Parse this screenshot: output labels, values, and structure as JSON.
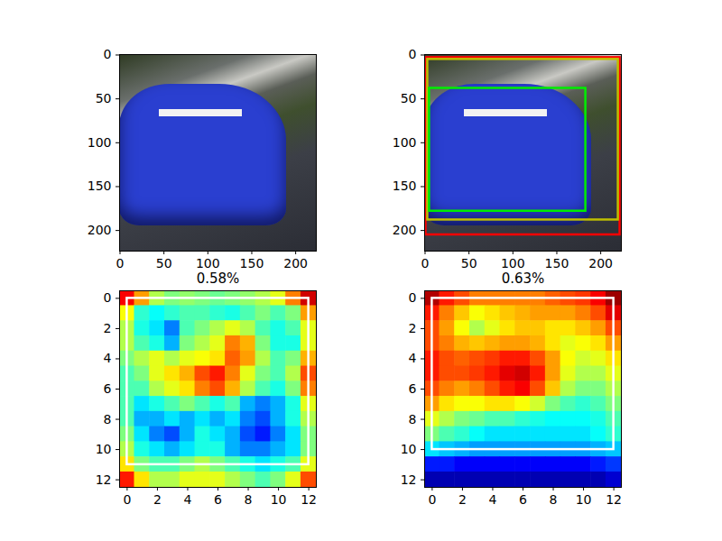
{
  "chart_data": [
    {
      "type": "image",
      "xlim": [
        -0.5,
        223.5
      ],
      "ylim": [
        223.5,
        -0.5
      ],
      "xticks": [
        0,
        50,
        100,
        150,
        200
      ],
      "yticks": [
        0,
        50,
        100,
        150,
        200
      ]
    },
    {
      "type": "image",
      "xlim": [
        -0.5,
        223.5
      ],
      "ylim": [
        223.5,
        -0.5
      ],
      "xticks": [
        0,
        50,
        100,
        150,
        200
      ],
      "yticks": [
        0,
        50,
        100,
        150,
        200
      ],
      "boxes": [
        {
          "x": [
            1,
            222
          ],
          "y": [
            3,
            205
          ],
          "color": "#ff0000"
        },
        {
          "x": [
            3,
            220
          ],
          "y": [
            5,
            188
          ],
          "color": "#bfbf00"
        },
        {
          "x": [
            5,
            183
          ],
          "y": [
            38,
            178
          ],
          "color": "#00ee00"
        }
      ]
    },
    {
      "type": "heatmap",
      "title": "0.58%",
      "xlim": [
        -0.5,
        12.5
      ],
      "ylim": [
        12.5,
        -0.5
      ],
      "xticks": [
        0,
        2,
        4,
        6,
        8,
        10,
        12
      ],
      "yticks": [
        0,
        2,
        4,
        6,
        8,
        10,
        12
      ],
      "zlim": [
        0,
        1
      ],
      "cells": [
        [
          0.88,
          0.72,
          0.55,
          0.5,
          0.52,
          0.5,
          0.48,
          0.5,
          0.52,
          0.55,
          0.6,
          0.75,
          0.92
        ],
        [
          0.62,
          0.42,
          0.38,
          0.42,
          0.45,
          0.45,
          0.42,
          0.4,
          0.45,
          0.5,
          0.45,
          0.5,
          0.72
        ],
        [
          0.55,
          0.4,
          0.35,
          0.25,
          0.45,
          0.5,
          0.55,
          0.6,
          0.55,
          0.45,
          0.4,
          0.45,
          0.6
        ],
        [
          0.55,
          0.45,
          0.4,
          0.3,
          0.5,
          0.55,
          0.6,
          0.75,
          0.7,
          0.5,
          0.4,
          0.4,
          0.6
        ],
        [
          0.5,
          0.55,
          0.6,
          0.55,
          0.6,
          0.62,
          0.65,
          0.78,
          0.72,
          0.55,
          0.45,
          0.5,
          0.7
        ],
        [
          0.45,
          0.5,
          0.6,
          0.65,
          0.7,
          0.8,
          0.85,
          0.75,
          0.6,
          0.5,
          0.45,
          0.55,
          0.8
        ],
        [
          0.45,
          0.45,
          0.55,
          0.6,
          0.65,
          0.75,
          0.8,
          0.7,
          0.55,
          0.45,
          0.4,
          0.5,
          0.75
        ],
        [
          0.45,
          0.35,
          0.4,
          0.45,
          0.5,
          0.45,
          0.4,
          0.45,
          0.3,
          0.25,
          0.3,
          0.4,
          0.6
        ],
        [
          0.45,
          0.3,
          0.3,
          0.35,
          0.3,
          0.35,
          0.3,
          0.35,
          0.25,
          0.2,
          0.3,
          0.4,
          0.55
        ],
        [
          0.5,
          0.35,
          0.25,
          0.2,
          0.3,
          0.4,
          0.35,
          0.3,
          0.2,
          0.15,
          0.25,
          0.35,
          0.5
        ],
        [
          0.55,
          0.4,
          0.35,
          0.3,
          0.35,
          0.4,
          0.4,
          0.3,
          0.25,
          0.25,
          0.3,
          0.35,
          0.5
        ],
        [
          0.65,
          0.5,
          0.45,
          0.45,
          0.5,
          0.55,
          0.5,
          0.45,
          0.4,
          0.35,
          0.4,
          0.45,
          0.6
        ],
        [
          0.85,
          0.65,
          0.55,
          0.55,
          0.6,
          0.6,
          0.6,
          0.55,
          0.5,
          0.45,
          0.5,
          0.6,
          0.8
        ]
      ],
      "boxes": [
        {
          "x": [
            0,
            12
          ],
          "y": [
            0,
            11
          ],
          "color": "#ffffff"
        }
      ]
    },
    {
      "type": "heatmap",
      "title": "0.63%",
      "xlim": [
        -0.5,
        12.5
      ],
      "ylim": [
        12.5,
        -0.5
      ],
      "xticks": [
        0,
        2,
        4,
        6,
        8,
        10,
        12
      ],
      "yticks": [
        0,
        2,
        4,
        6,
        8,
        10,
        12
      ],
      "zlim": [
        0,
        1
      ],
      "cells": [
        [
          0.95,
          0.85,
          0.8,
          0.75,
          0.75,
          0.75,
          0.75,
          0.75,
          0.78,
          0.8,
          0.82,
          0.88,
          0.97
        ],
        [
          0.85,
          0.75,
          0.68,
          0.62,
          0.65,
          0.68,
          0.7,
          0.72,
          0.72,
          0.72,
          0.75,
          0.8,
          0.9
        ],
        [
          0.8,
          0.72,
          0.62,
          0.55,
          0.6,
          0.65,
          0.68,
          0.68,
          0.65,
          0.65,
          0.68,
          0.72,
          0.8
        ],
        [
          0.8,
          0.75,
          0.7,
          0.68,
          0.7,
          0.72,
          0.72,
          0.7,
          0.65,
          0.6,
          0.62,
          0.65,
          0.72
        ],
        [
          0.85,
          0.8,
          0.78,
          0.8,
          0.82,
          0.85,
          0.85,
          0.8,
          0.72,
          0.62,
          0.58,
          0.6,
          0.65
        ],
        [
          0.85,
          0.8,
          0.8,
          0.82,
          0.85,
          0.9,
          0.92,
          0.85,
          0.72,
          0.6,
          0.55,
          0.55,
          0.6
        ],
        [
          0.8,
          0.75,
          0.72,
          0.75,
          0.8,
          0.85,
          0.88,
          0.8,
          0.68,
          0.55,
          0.5,
          0.5,
          0.55
        ],
        [
          0.72,
          0.65,
          0.62,
          0.62,
          0.65,
          0.65,
          0.62,
          0.58,
          0.5,
          0.45,
          0.42,
          0.45,
          0.5
        ],
        [
          0.6,
          0.55,
          0.5,
          0.48,
          0.45,
          0.45,
          0.42,
          0.4,
          0.38,
          0.38,
          0.38,
          0.4,
          0.45
        ],
        [
          0.5,
          0.45,
          0.42,
          0.38,
          0.35,
          0.35,
          0.35,
          0.35,
          0.35,
          0.35,
          0.35,
          0.38,
          0.42
        ],
        [
          0.35,
          0.32,
          0.3,
          0.28,
          0.28,
          0.28,
          0.28,
          0.28,
          0.28,
          0.28,
          0.28,
          0.3,
          0.32
        ],
        [
          0.15,
          0.15,
          0.12,
          0.12,
          0.12,
          0.12,
          0.12,
          0.12,
          0.12,
          0.12,
          0.12,
          0.15,
          0.18
        ],
        [
          0.05,
          0.05,
          0.05,
          0.05,
          0.05,
          0.05,
          0.05,
          0.05,
          0.05,
          0.05,
          0.05,
          0.05,
          0.08
        ]
      ],
      "boxes": [
        {
          "x": [
            0,
            12
          ],
          "y": [
            0,
            10
          ],
          "color": "#ffffff"
        }
      ]
    }
  ]
}
